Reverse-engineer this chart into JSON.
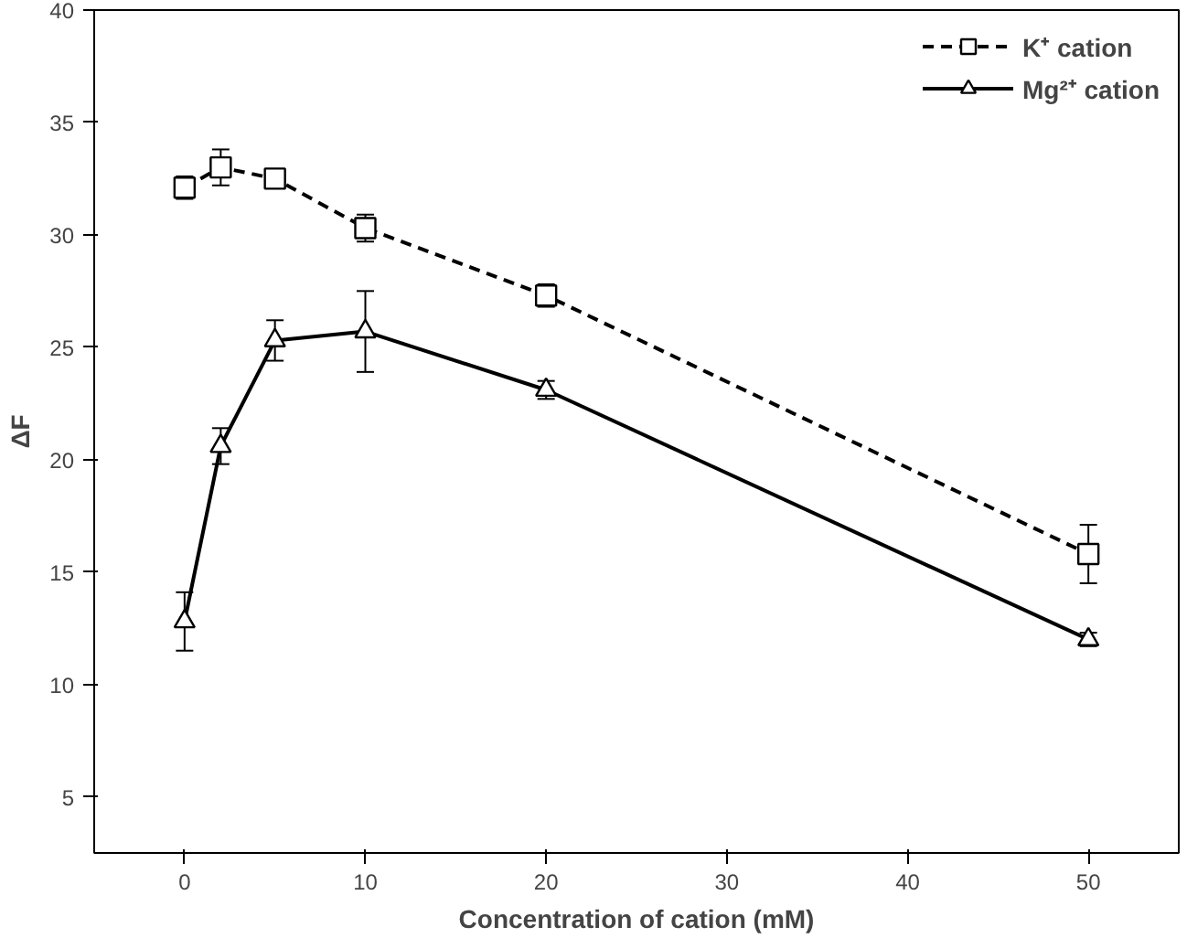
{
  "chart_data": {
    "type": "line",
    "xlabel": "Concentration of cation (mM)",
    "ylabel": "ΔF",
    "x": [
      0,
      2,
      5,
      10,
      20,
      50
    ],
    "xlim": [
      -5,
      55
    ],
    "ylim": [
      2.5,
      40
    ],
    "xticks": [
      0,
      10,
      20,
      30,
      40,
      50
    ],
    "yticks": [
      5,
      10,
      15,
      20,
      25,
      30,
      35,
      40
    ],
    "grid": false,
    "legend": "top right",
    "series": [
      {
        "name": "K⁺ cation",
        "color": "#000000",
        "marker": "square",
        "line_style": "dashed",
        "values": [
          32.1,
          33.0,
          32.5,
          30.3,
          27.3,
          15.8
        ],
        "errors": [
          0.5,
          0.8,
          null,
          0.6,
          0.5,
          1.3
        ]
      },
      {
        "name": "Mg²⁺ cation",
        "color": "#000000",
        "marker": "triangle",
        "line_style": "solid",
        "values": [
          12.8,
          20.6,
          25.3,
          25.7,
          23.1,
          12.0
        ],
        "errors": [
          1.3,
          0.8,
          0.9,
          1.8,
          0.4,
          0.3
        ]
      }
    ]
  }
}
